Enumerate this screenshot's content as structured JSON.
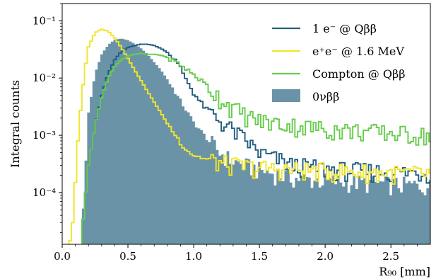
{
  "chart_data": {
    "type": "histogram",
    "xlabel": "R₉₀ [mm]",
    "ylabel": "Integral counts",
    "xlim": [
      0.0,
      2.8
    ],
    "ylim": [
      1.25e-05,
      0.2
    ],
    "yscale": "log",
    "legend_placement": "top-right",
    "x_ticks": [
      {
        "value": 0.0,
        "label": "0.0"
      },
      {
        "value": 0.5,
        "label": "0.5"
      },
      {
        "value": 1.0,
        "label": "1.0"
      },
      {
        "value": 1.5,
        "label": "1.5"
      },
      {
        "value": 2.0,
        "label": "2.0"
      },
      {
        "value": 2.5,
        "label": "2.5"
      }
    ],
    "y_ticks": [
      {
        "value": 0.1,
        "label": "10⁻¹"
      },
      {
        "value": 0.01,
        "label": "10⁻²"
      },
      {
        "value": 0.001,
        "label": "10⁻³"
      },
      {
        "value": 0.0001,
        "label": "10⁻⁴"
      }
    ],
    "series": [
      {
        "name": "0νββ",
        "style": "filled",
        "color": "#6a93a8",
        "x": [
          0.15,
          0.2,
          0.25,
          0.3,
          0.35,
          0.4,
          0.45,
          0.5,
          0.55,
          0.6,
          0.65,
          0.7,
          0.75,
          0.8,
          0.85,
          0.9,
          0.95,
          1.0,
          1.1,
          1.2,
          1.3,
          1.5,
          1.75,
          2.0,
          2.25,
          2.5,
          2.8
        ],
        "y": [
          2e-05,
          0.0025,
          0.012,
          0.026,
          0.038,
          0.047,
          0.049,
          0.046,
          0.04,
          0.033,
          0.026,
          0.019,
          0.014,
          0.0095,
          0.0062,
          0.004,
          0.0026,
          0.0017,
          0.0009,
          0.0005,
          0.00035,
          0.00025,
          0.00018,
          0.00016,
          0.00015,
          0.00014,
          0.00013
        ]
      },
      {
        "name": "1 e⁻ @ Qββ",
        "style": "step",
        "color": "#1f5f7f",
        "x": [
          0.15,
          0.2,
          0.25,
          0.3,
          0.35,
          0.4,
          0.45,
          0.5,
          0.55,
          0.6,
          0.65,
          0.7,
          0.75,
          0.8,
          0.85,
          0.9,
          0.95,
          1.0,
          1.05,
          1.1,
          1.2,
          1.3,
          1.4,
          1.5,
          1.75,
          2.0,
          2.25,
          2.5,
          2.8
        ],
        "y": [
          2e-05,
          0.0003,
          0.0015,
          0.005,
          0.012,
          0.021,
          0.029,
          0.034,
          0.037,
          0.039,
          0.039,
          0.037,
          0.033,
          0.028,
          0.022,
          0.015,
          0.009,
          0.0055,
          0.0038,
          0.0028,
          0.0018,
          0.0012,
          0.0008,
          0.0005,
          0.0003,
          0.00026,
          0.00024,
          0.00023,
          0.00022
        ]
      },
      {
        "name": "e⁺e⁻ @ 1.6 MeV",
        "style": "step",
        "color": "#f2e52a",
        "x": [
          0.05,
          0.08,
          0.1,
          0.12,
          0.15,
          0.18,
          0.2,
          0.25,
          0.3,
          0.35,
          0.4,
          0.45,
          0.5,
          0.55,
          0.6,
          0.65,
          0.7,
          0.75,
          0.8,
          0.85,
          0.9,
          0.95,
          1.0,
          1.1,
          1.2,
          1.3,
          1.5,
          1.75,
          2.0,
          2.25,
          2.5,
          2.8
        ],
        "y": [
          1e-05,
          3e-05,
          0.00015,
          0.0008,
          0.005,
          0.018,
          0.035,
          0.062,
          0.071,
          0.066,
          0.05,
          0.034,
          0.022,
          0.014,
          0.009,
          0.0058,
          0.0038,
          0.0025,
          0.0016,
          0.0011,
          0.00075,
          0.00055,
          0.00045,
          0.00038,
          0.00033,
          0.0003,
          0.00027,
          0.00025,
          0.00024,
          0.00023,
          0.00022,
          0.00021
        ]
      },
      {
        "name": "Compton @ Qββ",
        "style": "step",
        "color": "#66cc4c",
        "x": [
          0.15,
          0.2,
          0.25,
          0.3,
          0.35,
          0.4,
          0.45,
          0.5,
          0.55,
          0.6,
          0.65,
          0.7,
          0.75,
          0.8,
          0.85,
          0.9,
          0.95,
          1.0,
          1.1,
          1.2,
          1.3,
          1.4,
          1.5,
          1.75,
          2.0,
          2.25,
          2.5,
          2.8
        ],
        "y": [
          2e-05,
          0.0003,
          0.0015,
          0.0045,
          0.01,
          0.016,
          0.021,
          0.024,
          0.026,
          0.027,
          0.026,
          0.026,
          0.025,
          0.023,
          0.02,
          0.017,
          0.014,
          0.0115,
          0.0075,
          0.0045,
          0.003,
          0.0022,
          0.0018,
          0.0015,
          0.0013,
          0.0012,
          0.0011,
          0.001
        ]
      }
    ]
  }
}
